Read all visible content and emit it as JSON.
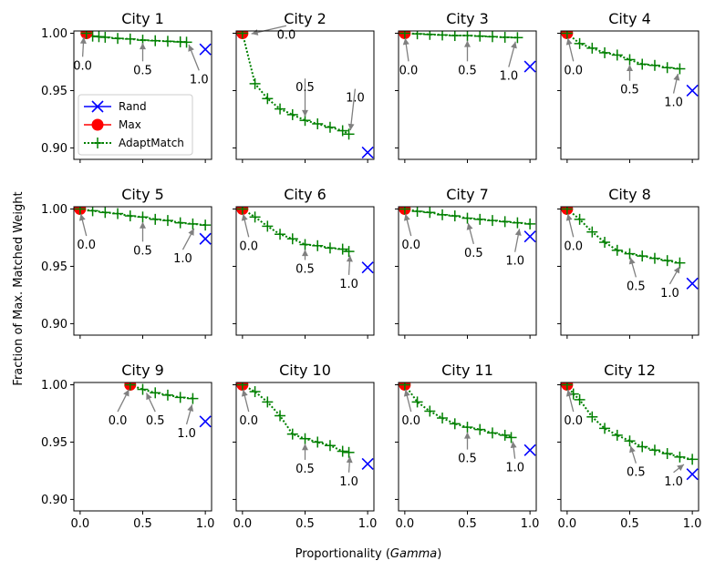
{
  "chart_data": {
    "type": "line",
    "ylabel": "Fraction of Max. Matched Weight",
    "xlabel_prefix": "Proportionality (",
    "xlabel_var": "Gamma",
    "xlabel_suffix": ")",
    "xlim": [
      -0.05,
      1.05
    ],
    "ylim": [
      0.89,
      1.002
    ],
    "xticks": [
      0.0,
      0.5,
      1.0
    ],
    "xtick_labels": [
      "0.0",
      "0.5",
      "1.0"
    ],
    "yticks": [
      0.9,
      0.95,
      1.0
    ],
    "ytick_labels": [
      "0.90",
      "0.95",
      "1.00"
    ],
    "legend": {
      "location": "lower-left of City 1",
      "entries": [
        {
          "label": "Rand",
          "color": "#0000ff",
          "marker": "x"
        },
        {
          "label": "Max",
          "color": "#ff0000",
          "marker": "o"
        },
        {
          "label": "AdaptMatch",
          "color": "#008000",
          "marker": "+",
          "linestyle": "dotted"
        }
      ]
    },
    "colors": {
      "rand": "#0000ff",
      "max": "#ff0000",
      "adapt": "#008000",
      "arrow": "#808080"
    },
    "panels": [
      {
        "title": "City 1",
        "rand": [
          1.0,
          0.986
        ],
        "max": [
          0.05,
          1.0
        ],
        "adapt": [
          [
            0.05,
            1.0
          ],
          [
            0.1,
            0.9975
          ],
          [
            0.15,
            0.997
          ],
          [
            0.2,
            0.9965
          ],
          [
            0.3,
            0.9955
          ],
          [
            0.4,
            0.995
          ],
          [
            0.5,
            0.994
          ],
          [
            0.6,
            0.9935
          ],
          [
            0.7,
            0.993
          ],
          [
            0.8,
            0.9925
          ],
          [
            0.85,
            0.9922
          ]
        ],
        "annotations": [
          {
            "label": "0.0",
            "point": [
              0.03,
              0.999
            ],
            "text": [
              0.02,
              0.97
            ]
          },
          {
            "label": "0.5",
            "point": [
              0.5,
              0.994
            ],
            "text": [
              0.5,
              0.966
            ]
          },
          {
            "label": "1.0",
            "point": [
              0.86,
              0.9922
            ],
            "text": [
              0.95,
              0.958
            ]
          }
        ]
      },
      {
        "title": "City 2",
        "rand": [
          1.0,
          0.896
        ],
        "max": [
          0.0,
          1.0
        ],
        "adapt": [
          [
            0.0,
            1.0
          ],
          [
            0.1,
            0.956
          ],
          [
            0.2,
            0.943
          ],
          [
            0.3,
            0.934
          ],
          [
            0.4,
            0.929
          ],
          [
            0.5,
            0.924
          ],
          [
            0.6,
            0.921
          ],
          [
            0.7,
            0.918
          ],
          [
            0.8,
            0.915
          ],
          [
            0.85,
            0.912
          ]
        ],
        "annotations": [
          {
            "label": "0.0",
            "point": [
              0.05,
              0.999
            ],
            "text": [
              0.35,
              0.997
            ]
          },
          {
            "label": "0.5",
            "point": [
              0.5,
              0.925
            ],
            "text": [
              0.5,
              0.951
            ]
          },
          {
            "label": "1.0",
            "point": [
              0.86,
              0.913
            ],
            "text": [
              0.9,
              0.942
            ]
          }
        ]
      },
      {
        "title": "City 3",
        "rand": [
          1.0,
          0.971
        ],
        "max": [
          0.0,
          1.0
        ],
        "adapt": [
          [
            0.0,
            1.0
          ],
          [
            0.1,
            0.9995
          ],
          [
            0.2,
            0.999
          ],
          [
            0.3,
            0.9985
          ],
          [
            0.4,
            0.998
          ],
          [
            0.5,
            0.998
          ],
          [
            0.6,
            0.9975
          ],
          [
            0.7,
            0.997
          ],
          [
            0.8,
            0.9965
          ],
          [
            0.9,
            0.9962
          ]
        ],
        "annotations": [
          {
            "label": "0.0",
            "point": [
              0.0,
              0.998
            ],
            "text": [
              0.03,
              0.966
            ]
          },
          {
            "label": "0.5",
            "point": [
              0.5,
              0.996
            ],
            "text": [
              0.5,
              0.966
            ]
          },
          {
            "label": "1.0",
            "point": [
              0.89,
              0.995
            ],
            "text": [
              0.83,
              0.961
            ]
          }
        ]
      },
      {
        "title": "City 4",
        "rand": [
          1.0,
          0.95
        ],
        "max": [
          0.0,
          1.0
        ],
        "adapt": [
          [
            0.0,
            1.0
          ],
          [
            0.1,
            0.991
          ],
          [
            0.2,
            0.987
          ],
          [
            0.3,
            0.983
          ],
          [
            0.4,
            0.981
          ],
          [
            0.5,
            0.977
          ],
          [
            0.6,
            0.973
          ],
          [
            0.7,
            0.972
          ],
          [
            0.8,
            0.97
          ],
          [
            0.9,
            0.969
          ]
        ],
        "annotations": [
          {
            "label": "0.0",
            "point": [
              0.0,
              0.998
            ],
            "text": [
              0.05,
              0.966
            ]
          },
          {
            "label": "0.5",
            "point": [
              0.5,
              0.975
            ],
            "text": [
              0.5,
              0.949
            ]
          },
          {
            "label": "1.0",
            "point": [
              0.89,
              0.967
            ],
            "text": [
              0.85,
              0.938
            ]
          }
        ]
      },
      {
        "title": "City 5",
        "rand": [
          1.0,
          0.974
        ],
        "max": [
          0.0,
          1.0
        ],
        "adapt": [
          [
            0.0,
            1.0
          ],
          [
            0.1,
            0.9985
          ],
          [
            0.2,
            0.997
          ],
          [
            0.3,
            0.996
          ],
          [
            0.4,
            0.994
          ],
          [
            0.5,
            0.993
          ],
          [
            0.6,
            0.991
          ],
          [
            0.7,
            0.99
          ],
          [
            0.8,
            0.988
          ],
          [
            0.9,
            0.987
          ],
          [
            1.0,
            0.986
          ]
        ],
        "annotations": [
          {
            "label": "0.0",
            "point": [
              0.0,
              0.998
            ],
            "text": [
              0.05,
              0.967
            ]
          },
          {
            "label": "0.5",
            "point": [
              0.5,
              0.991
            ],
            "text": [
              0.5,
              0.962
            ]
          },
          {
            "label": "1.0",
            "point": [
              0.92,
              0.985
            ],
            "text": [
              0.82,
              0.955
            ]
          }
        ]
      },
      {
        "title": "City 6",
        "rand": [
          1.0,
          0.949
        ],
        "max": [
          0.0,
          1.0
        ],
        "adapt": [
          [
            0.0,
            1.0
          ],
          [
            0.1,
            0.993
          ],
          [
            0.2,
            0.985
          ],
          [
            0.3,
            0.978
          ],
          [
            0.4,
            0.974
          ],
          [
            0.5,
            0.969
          ],
          [
            0.6,
            0.968
          ],
          [
            0.7,
            0.966
          ],
          [
            0.8,
            0.965
          ],
          [
            0.85,
            0.963
          ]
        ],
        "annotations": [
          {
            "label": "0.0",
            "point": [
              0.0,
              0.998
            ],
            "text": [
              0.05,
              0.966
            ]
          },
          {
            "label": "0.5",
            "point": [
              0.5,
              0.967
            ],
            "text": [
              0.5,
              0.946
            ]
          },
          {
            "label": "1.0",
            "point": [
              0.86,
              0.962
            ],
            "text": [
              0.85,
              0.933
            ]
          }
        ]
      },
      {
        "title": "City 7",
        "rand": [
          1.0,
          0.976
        ],
        "max": [
          0.0,
          1.0
        ],
        "adapt": [
          [
            0.0,
            1.0
          ],
          [
            0.1,
            0.998
          ],
          [
            0.2,
            0.997
          ],
          [
            0.3,
            0.995
          ],
          [
            0.4,
            0.994
          ],
          [
            0.5,
            0.992
          ],
          [
            0.6,
            0.991
          ],
          [
            0.7,
            0.99
          ],
          [
            0.8,
            0.989
          ],
          [
            0.9,
            0.988
          ],
          [
            1.0,
            0.987
          ]
        ],
        "annotations": [
          {
            "label": "0.0",
            "point": [
              0.0,
              0.998
            ],
            "text": [
              0.05,
              0.967
            ]
          },
          {
            "label": "0.5",
            "point": [
              0.5,
              0.99
            ],
            "text": [
              0.55,
              0.96
            ]
          },
          {
            "label": "1.0",
            "point": [
              0.92,
              0.985
            ],
            "text": [
              0.88,
              0.953
            ]
          }
        ]
      },
      {
        "title": "City 8",
        "rand": [
          1.0,
          0.935
        ],
        "max": [
          0.0,
          1.0
        ],
        "adapt": [
          [
            0.0,
            1.0
          ],
          [
            0.1,
            0.991
          ],
          [
            0.2,
            0.98
          ],
          [
            0.3,
            0.971
          ],
          [
            0.4,
            0.964
          ],
          [
            0.5,
            0.961
          ],
          [
            0.6,
            0.959
          ],
          [
            0.7,
            0.957
          ],
          [
            0.8,
            0.955
          ],
          [
            0.9,
            0.953
          ]
        ],
        "annotations": [
          {
            "label": "0.0",
            "point": [
              0.0,
              0.998
            ],
            "text": [
              0.05,
              0.966
            ]
          },
          {
            "label": "0.5",
            "point": [
              0.5,
              0.96
            ],
            "text": [
              0.55,
              0.931
            ]
          },
          {
            "label": "1.0",
            "point": [
              0.91,
              0.952
            ],
            "text": [
              0.82,
              0.925
            ]
          }
        ]
      },
      {
        "title": "City 9",
        "rand": [
          1.0,
          0.968
        ],
        "max": [
          0.4,
          1.0
        ],
        "adapt": [
          [
            0.4,
            1.0
          ],
          [
            0.5,
            0.996
          ],
          [
            0.6,
            0.993
          ],
          [
            0.7,
            0.991
          ],
          [
            0.8,
            0.989
          ],
          [
            0.9,
            0.988
          ]
        ],
        "annotations": [
          {
            "label": "0.0",
            "point": [
              0.4,
              0.998
            ],
            "text": [
              0.3,
              0.967
            ]
          },
          {
            "label": "0.5",
            "point": [
              0.52,
              0.995
            ],
            "text": [
              0.6,
              0.967
            ]
          },
          {
            "label": "1.0",
            "point": [
              0.9,
              0.985
            ],
            "text": [
              0.85,
              0.956
            ]
          }
        ]
      },
      {
        "title": "City 10",
        "rand": [
          1.0,
          0.931
        ],
        "max": [
          0.0,
          1.0
        ],
        "adapt": [
          [
            0.0,
            1.0
          ],
          [
            0.1,
            0.994
          ],
          [
            0.2,
            0.985
          ],
          [
            0.3,
            0.973
          ],
          [
            0.4,
            0.957
          ],
          [
            0.5,
            0.953
          ],
          [
            0.6,
            0.95
          ],
          [
            0.7,
            0.947
          ],
          [
            0.8,
            0.942
          ],
          [
            0.85,
            0.941
          ]
        ],
        "annotations": [
          {
            "label": "0.0",
            "point": [
              0.0,
              0.998
            ],
            "text": [
              0.05,
              0.967
            ]
          },
          {
            "label": "0.5",
            "point": [
              0.5,
              0.951
            ],
            "text": [
              0.5,
              0.925
            ]
          },
          {
            "label": "1.0",
            "point": [
              0.86,
              0.94
            ],
            "text": [
              0.85,
              0.914
            ]
          }
        ]
      },
      {
        "title": "City 11",
        "rand": [
          1.0,
          0.943
        ],
        "max": [
          0.0,
          1.0
        ],
        "adapt": [
          [
            0.0,
            1.0
          ],
          [
            0.1,
            0.985
          ],
          [
            0.2,
            0.977
          ],
          [
            0.3,
            0.971
          ],
          [
            0.4,
            0.966
          ],
          [
            0.5,
            0.963
          ],
          [
            0.6,
            0.961
          ],
          [
            0.7,
            0.958
          ],
          [
            0.8,
            0.956
          ],
          [
            0.85,
            0.954
          ]
        ],
        "annotations": [
          {
            "label": "0.0",
            "point": [
              0.0,
              0.998
            ],
            "text": [
              0.05,
              0.967
            ]
          },
          {
            "label": "0.5",
            "point": [
              0.5,
              0.961
            ],
            "text": [
              0.5,
              0.934
            ]
          },
          {
            "label": "1.0",
            "point": [
              0.86,
              0.953
            ],
            "text": [
              0.88,
              0.926
            ]
          }
        ]
      },
      {
        "title": "City 12",
        "rand": [
          1.0,
          0.922
        ],
        "max": [
          0.0,
          1.0
        ],
        "adapt": [
          [
            0.0,
            1.0
          ],
          [
            0.05,
            0.992
          ],
          [
            0.1,
            0.987
          ],
          [
            0.2,
            0.972
          ],
          [
            0.3,
            0.962
          ],
          [
            0.4,
            0.956
          ],
          [
            0.5,
            0.951
          ],
          [
            0.6,
            0.946
          ],
          [
            0.7,
            0.943
          ],
          [
            0.8,
            0.94
          ],
          [
            0.9,
            0.937
          ],
          [
            1.0,
            0.935
          ]
        ],
        "annotations": [
          {
            "label": "0.0",
            "point": [
              0.0,
              0.998
            ],
            "text": [
              0.05,
              0.967
            ]
          },
          {
            "label": "0.5",
            "point": [
              0.5,
              0.949
            ],
            "text": [
              0.55,
              0.922
            ]
          },
          {
            "label": "1.0",
            "point": [
              0.95,
              0.932
            ],
            "text": [
              0.85,
              0.914
            ]
          }
        ]
      }
    ]
  }
}
